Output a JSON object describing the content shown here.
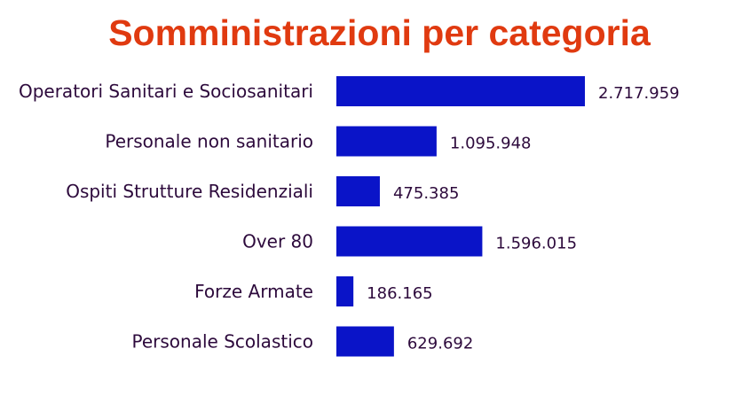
{
  "chart_data": {
    "type": "bar",
    "orientation": "horizontal",
    "title": "Somministrazioni per categoria",
    "categories": [
      "Operatori Sanitari e Sociosanitari",
      "Personale non sanitario",
      "Ospiti Strutture Residenziali",
      "Over 80",
      "Forze Armate",
      "Personale Scolastico"
    ],
    "values": [
      2717959,
      1095948,
      475385,
      1596015,
      186165,
      629692
    ],
    "value_labels": [
      "2.717.959",
      "1.095.948",
      "475.385",
      "1.596.015",
      "186.165",
      "629.692"
    ],
    "xlim": [
      0,
      2717959
    ],
    "grid": false,
    "legend": "none",
    "colors": {
      "bar": "#0a14c8",
      "title": "#e03a10",
      "category_text": "#2d0a3c",
      "value_text": "#2d0a3c"
    }
  }
}
